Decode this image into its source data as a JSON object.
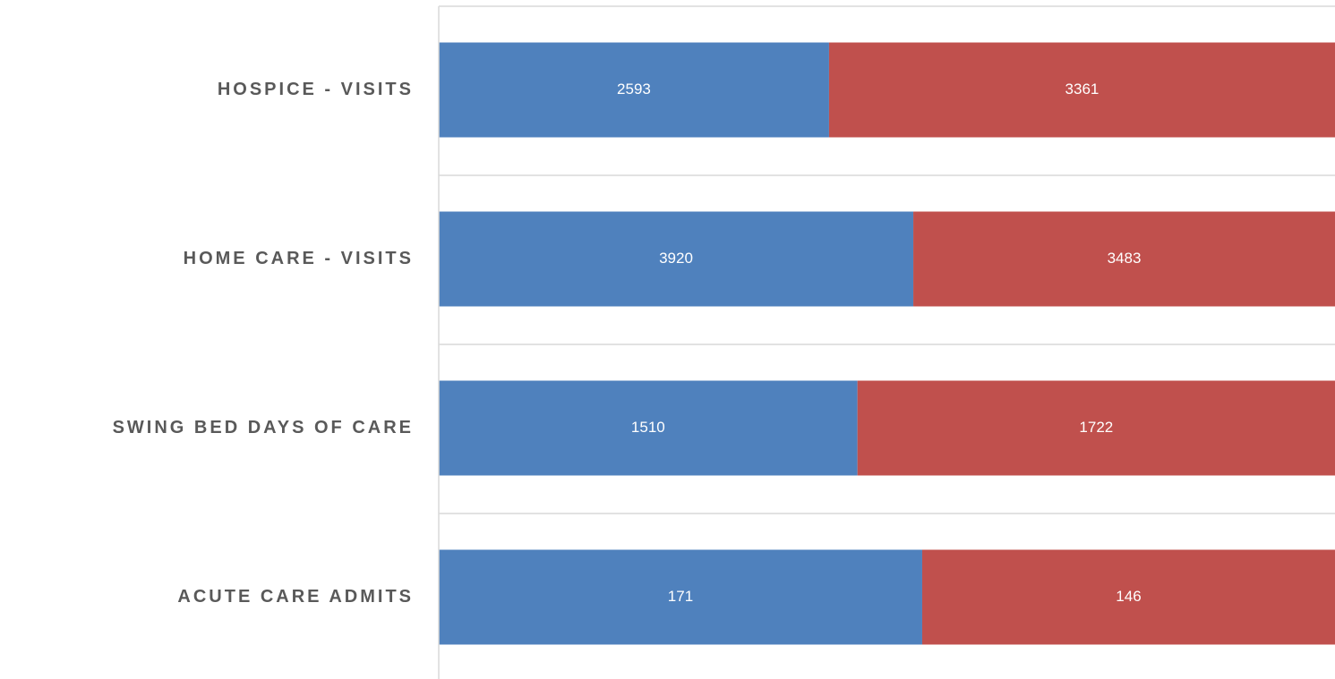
{
  "chart_data": {
    "type": "bar",
    "orientation": "horizontal",
    "stacked": "percent",
    "grid": true,
    "categories": [
      "HOSPICE - VISITS",
      "HOME CARE - VISITS",
      "SWING BED DAYS OF CARE",
      "ACUTE CARE ADMITS"
    ],
    "series": [
      {
        "color": "#4f81bd",
        "values": [
          2593,
          3920,
          1510,
          171
        ]
      },
      {
        "color": "#c0504d",
        "values": [
          3361,
          3483,
          1722,
          146
        ]
      }
    ]
  }
}
